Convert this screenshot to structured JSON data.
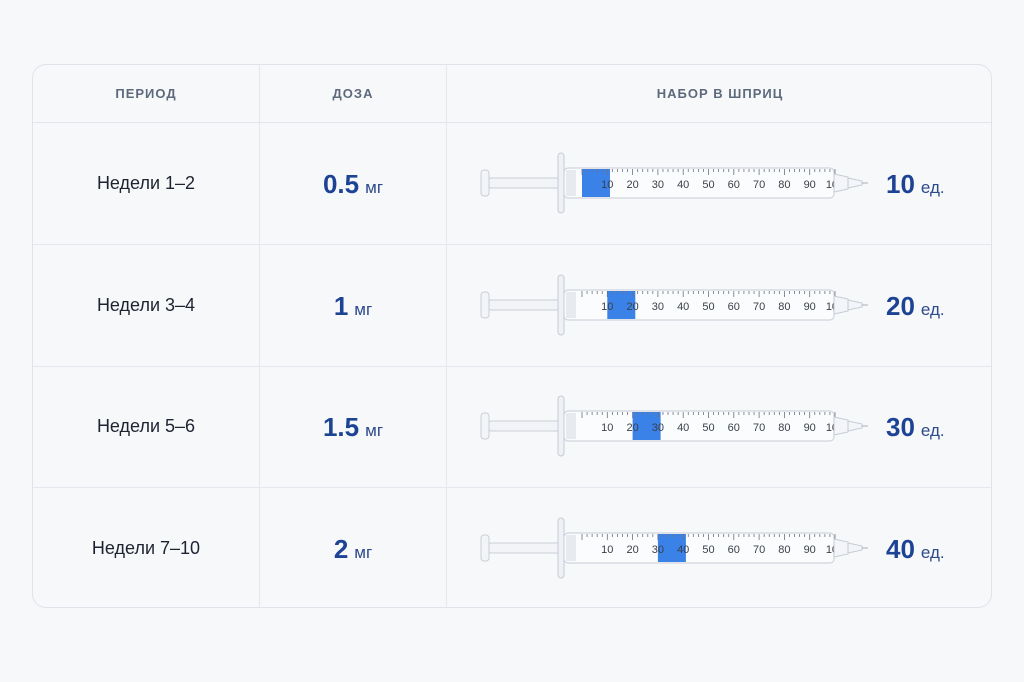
{
  "header": {
    "period": "ПЕРИОД",
    "dose": "ДОЗА",
    "syringe": "НАБОР В ШПРИЦ"
  },
  "syringe_scale": [
    "10",
    "20",
    "30",
    "40",
    "50",
    "60",
    "70",
    "80",
    "90",
    "100"
  ],
  "colors": {
    "accent": "#1c4394",
    "fill": "#3b82e8"
  },
  "rows": [
    {
      "period": "Недели 1–2",
      "dose_value": "0.5",
      "dose_unit": "мг",
      "units_value": "10",
      "units_unit": "ед.",
      "fill_units": 10
    },
    {
      "period": "Недели 3–4",
      "dose_value": "1",
      "dose_unit": "мг",
      "units_value": "20",
      "units_unit": "ед.",
      "fill_units": 20
    },
    {
      "period": "Недели 5–6",
      "dose_value": "1.5",
      "dose_unit": "мг",
      "units_value": "30",
      "units_unit": "ед.",
      "fill_units": 30
    },
    {
      "period": "Недели 7–10",
      "dose_value": "2",
      "dose_unit": "мг",
      "units_value": "40",
      "units_unit": "ед.",
      "fill_units": 40
    }
  ]
}
